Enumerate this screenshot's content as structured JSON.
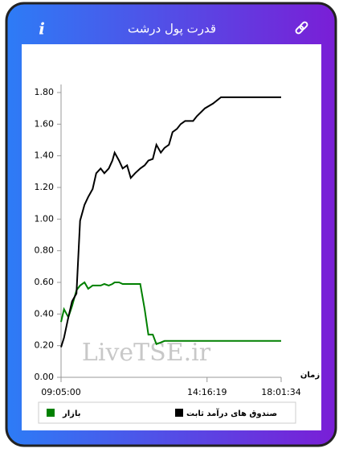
{
  "header": {
    "title": "قدرت پول درشت",
    "info": "i"
  },
  "chart_data": {
    "type": "line",
    "x_label": "زمان",
    "watermark": "LiveTSE.ir",
    "x": [
      0,
      4,
      10,
      15,
      21,
      26,
      32,
      37,
      43,
      48,
      54,
      59,
      65,
      70,
      73,
      79,
      84,
      90,
      95,
      101,
      108,
      114,
      119,
      125,
      130,
      136,
      141,
      147,
      152,
      158,
      163,
      169,
      180,
      185,
      196,
      207,
      218,
      300
    ],
    "series": [
      {
        "name": "صندوق های درآمد ثابت",
        "color": "#000000",
        "values": [
          0.19,
          0.25,
          0.38,
          0.48,
          0.53,
          0.99,
          1.09,
          1.14,
          1.19,
          1.29,
          1.32,
          1.29,
          1.32,
          1.37,
          1.42,
          1.37,
          1.32,
          1.34,
          1.26,
          1.29,
          1.32,
          1.34,
          1.37,
          1.38,
          1.47,
          1.42,
          1.45,
          1.47,
          1.55,
          1.57,
          1.6,
          1.62,
          1.62,
          1.65,
          1.7,
          1.73,
          1.77,
          1.77
        ]
      },
      {
        "name": "بازار",
        "color": "#008000",
        "values": [
          0.35,
          0.43,
          0.38,
          0.45,
          0.55,
          0.58,
          0.6,
          0.56,
          0.58,
          0.58,
          0.58,
          0.59,
          0.58,
          0.59,
          0.6,
          0.6,
          0.59,
          0.59,
          0.59,
          0.59,
          0.59,
          0.43,
          0.27,
          0.27,
          0.21,
          0.22,
          0.23,
          0.23,
          0.23,
          0.23,
          0.23,
          0.23,
          0.23,
          0.23,
          0.23,
          0.23,
          0.23,
          0.23
        ]
      }
    ],
    "xlim": [
      0,
      300
    ],
    "xticks": [
      {
        "value": 0,
        "label": "09:05:00"
      },
      {
        "value": 199,
        "label": "14:16:19"
      },
      {
        "value": 300,
        "label": "18:01:34"
      }
    ],
    "ylim": [
      0,
      1.8
    ],
    "yticks": [
      {
        "value": 0,
        "label": "0.00"
      },
      {
        "value": 0.2,
        "label": "0.20"
      },
      {
        "value": 0.4,
        "label": "0.40"
      },
      {
        "value": 0.6,
        "label": "0.60"
      },
      {
        "value": 0.8,
        "label": "0.80"
      },
      {
        "value": 1.0,
        "label": "1.00"
      },
      {
        "value": 1.2,
        "label": "1.20"
      },
      {
        "value": 1.4,
        "label": "1.40"
      },
      {
        "value": 1.6,
        "label": "1.60"
      },
      {
        "value": 1.8,
        "label": "1.80"
      }
    ],
    "legend": "bottom"
  }
}
